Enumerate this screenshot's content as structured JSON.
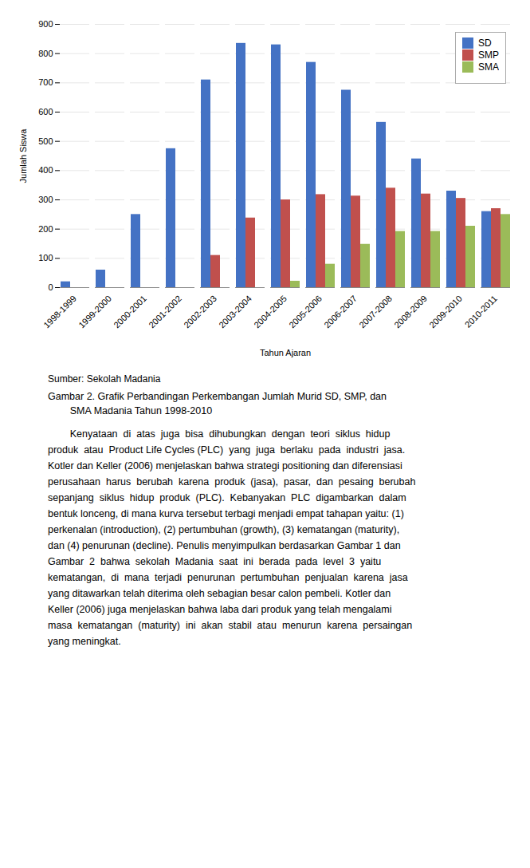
{
  "chart_data": {
    "type": "bar",
    "categories": [
      "1998-1999",
      "1999-2000",
      "2000-2001",
      "2001-2002",
      "2002-2003",
      "2003-2004",
      "2004-2005",
      "2005-2006",
      "2006-2007",
      "2007-2008",
      "2008-2009",
      "2009-2010",
      "2010-2011"
    ],
    "series": [
      {
        "name": "SD",
        "color": "#4472C4",
        "values": [
          20,
          60,
          250,
          475,
          710,
          835,
          830,
          770,
          675,
          565,
          440,
          330,
          260
        ]
      },
      {
        "name": "SMP",
        "color": "#C0504D",
        "values": [
          0,
          0,
          0,
          0,
          110,
          238,
          300,
          318,
          313,
          340,
          320,
          305,
          270
        ]
      },
      {
        "name": "SMA",
        "color": "#9BBB59",
        "values": [
          0,
          0,
          0,
          0,
          0,
          0,
          22,
          80,
          148,
          192,
          192,
          210,
          250
        ]
      }
    ],
    "xlabel": "Tahun Ajaran",
    "ylabel": "Jumlah Siswa",
    "ylim": [
      0,
      900
    ],
    "yticks": [
      0,
      100,
      200,
      300,
      400,
      500,
      600,
      700,
      800,
      900
    ],
    "grid": true,
    "legend": "upper right"
  },
  "source_text": "Sumber: Sekolah Madania",
  "caption": [
    "Gambar 2. Grafik Perbandingan Perkembangan Jumlah Murid SD, SMP, dan",
    "        SMA Madania Tahun 1998-2010"
  ],
  "body": [
    "        Kenyataan  di  atas  juga  bisa  dihubungkan  dengan  teori  siklus  hidup",
    "produk  atau  Product Life Cycles (PLC)  yang  juga  berlaku  pada  industri  jasa.",
    "Kotler dan Keller (2006) menjelaskan bahwa strategi positioning dan diferensiasi",
    "perusahaan  harus  berubah  karena  produk  (jasa),  pasar,  dan  pesaing  berubah",
    "sepanjang  siklus  hidup  produk  (PLC).  Kebanyakan  PLC  digambarkan  dalam",
    "bentuk lonceng, di mana kurva tersebut terbagi menjadi empat tahapan yaitu: (1)",
    "perkenalan (introduction), (2) pertumbuhan (growth), (3) kematangan (maturity),",
    "dan (4) penurunan (decline). Penulis menyimpulkan berdasarkan Gambar 1 dan",
    "Gambar  2  bahwa  sekolah  Madania  saat  ini  berada  pada  level  3  yaitu",
    "kematangan,  di  mana  terjadi  penurunan  pertumbuhan  penjualan  karena  jasa",
    "yang ditawarkan telah diterima oleh sebagian besar calon pembeli. Kotler dan",
    "Keller (2006) juga menjelaskan bahwa laba dari produk yang telah mengalami",
    "masa  kematangan  (maturity)  ini  akan  stabil  atau  menurun  karena  persaingan",
    "yang meningkat."
  ]
}
